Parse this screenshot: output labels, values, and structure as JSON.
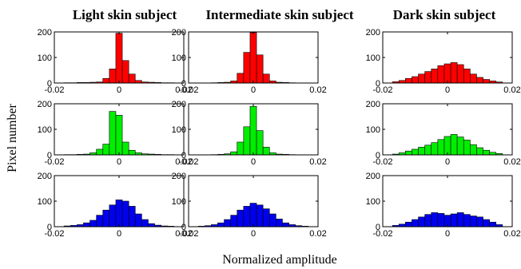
{
  "figure": {
    "column_titles": [
      "Light skin subject",
      "Intermediate skin subject",
      "Dark skin subject"
    ],
    "xlabel": "Normalized amplitude",
    "ylabel": "Pixel number"
  },
  "chart_data": [
    {
      "type": "bar",
      "subject": "Light skin subject",
      "channel": "red",
      "color": "#ff0000",
      "xlim": [
        -0.02,
        0.02
      ],
      "ylim": [
        0,
        200
      ],
      "xticks": [
        "-0.02",
        "0",
        "0.02"
      ],
      "yticks": [
        "0",
        "100",
        "200"
      ],
      "bin_width": 0.002,
      "bin_centers": [
        -0.016,
        -0.014,
        -0.012,
        -0.01,
        -0.008,
        -0.006,
        -0.004,
        -0.002,
        0.0,
        0.002,
        0.004,
        0.006,
        0.008,
        0.01,
        0.012,
        0.014,
        0.016
      ],
      "values": [
        1,
        1,
        2,
        2,
        3,
        4,
        18,
        55,
        195,
        88,
        35,
        10,
        4,
        3,
        2,
        1,
        1
      ]
    },
    {
      "type": "bar",
      "subject": "Intermediate skin subject",
      "channel": "red",
      "color": "#ff0000",
      "xlim": [
        -0.02,
        0.02
      ],
      "ylim": [
        0,
        200
      ],
      "xticks": [
        "-0.02",
        "0",
        "0.02"
      ],
      "yticks": [
        "0",
        "100",
        "200"
      ],
      "bin_width": 0.002,
      "bin_centers": [
        -0.012,
        -0.01,
        -0.008,
        -0.006,
        -0.004,
        -0.002,
        0.0,
        0.002,
        0.004,
        0.006,
        0.008,
        0.01,
        0.012
      ],
      "values": [
        1,
        2,
        3,
        8,
        38,
        120,
        198,
        110,
        35,
        8,
        3,
        2,
        1
      ]
    },
    {
      "type": "bar",
      "subject": "Dark skin subject",
      "channel": "red",
      "color": "#ff0000",
      "xlim": [
        -0.02,
        0.02
      ],
      "ylim": [
        0,
        200
      ],
      "xticks": [
        "-0.02",
        "0",
        "0.02"
      ],
      "yticks": [
        "0",
        "100",
        "200"
      ],
      "bin_width": 0.002,
      "bin_centers": [
        -0.016,
        -0.014,
        -0.012,
        -0.01,
        -0.008,
        -0.006,
        -0.004,
        -0.002,
        0.0,
        0.002,
        0.004,
        0.006,
        0.008,
        0.01,
        0.012,
        0.014,
        0.016
      ],
      "values": [
        5,
        10,
        18,
        25,
        35,
        45,
        55,
        68,
        75,
        80,
        72,
        55,
        35,
        22,
        14,
        8,
        4
      ]
    },
    {
      "type": "bar",
      "subject": "Light skin subject",
      "channel": "green",
      "color": "#00ee00",
      "xlim": [
        -0.02,
        0.02
      ],
      "ylim": [
        0,
        200
      ],
      "xticks": [
        "-0.02",
        "0",
        "0.02"
      ],
      "yticks": [
        "0",
        "100",
        "200"
      ],
      "bin_width": 0.002,
      "bin_centers": [
        -0.016,
        -0.014,
        -0.012,
        -0.01,
        -0.008,
        -0.006,
        -0.004,
        -0.002,
        0.0,
        0.002,
        0.004,
        0.006,
        0.008,
        0.01,
        0.012,
        0.014,
        0.016
      ],
      "values": [
        1,
        1,
        2,
        3,
        8,
        22,
        42,
        170,
        155,
        50,
        18,
        8,
        4,
        3,
        2,
        1,
        1
      ]
    },
    {
      "type": "bar",
      "subject": "Intermediate skin subject",
      "channel": "green",
      "color": "#00ee00",
      "xlim": [
        -0.02,
        0.02
      ],
      "ylim": [
        0,
        200
      ],
      "xticks": [
        "-0.02",
        "0",
        "0.02"
      ],
      "yticks": [
        "0",
        "100",
        "200"
      ],
      "bin_width": 0.002,
      "bin_centers": [
        -0.012,
        -0.01,
        -0.008,
        -0.006,
        -0.004,
        -0.002,
        0.0,
        0.002,
        0.004,
        0.006,
        0.008,
        0.01,
        0.012
      ],
      "values": [
        1,
        2,
        4,
        12,
        50,
        110,
        190,
        95,
        30,
        8,
        3,
        2,
        1
      ]
    },
    {
      "type": "bar",
      "subject": "Dark skin subject",
      "channel": "green",
      "color": "#00ee00",
      "xlim": [
        -0.02,
        0.02
      ],
      "ylim": [
        0,
        200
      ],
      "xticks": [
        "-0.02",
        "0",
        "0.02"
      ],
      "yticks": [
        "0",
        "100",
        "200"
      ],
      "bin_width": 0.002,
      "bin_centers": [
        -0.016,
        -0.014,
        -0.012,
        -0.01,
        -0.008,
        -0.006,
        -0.004,
        -0.002,
        0.0,
        0.002,
        0.004,
        0.006,
        0.008,
        0.01,
        0.012,
        0.014,
        0.016
      ],
      "values": [
        3,
        8,
        15,
        22,
        30,
        38,
        48,
        60,
        72,
        80,
        70,
        58,
        40,
        28,
        18,
        10,
        5
      ]
    },
    {
      "type": "bar",
      "subject": "Light skin subject",
      "channel": "blue",
      "color": "#0000ee",
      "xlim": [
        -0.02,
        0.02
      ],
      "ylim": [
        0,
        200
      ],
      "xticks": [
        "-0.02",
        "0",
        "0.02"
      ],
      "yticks": [
        "0",
        "100",
        "200"
      ],
      "bin_width": 0.002,
      "bin_centers": [
        -0.016,
        -0.014,
        -0.012,
        -0.01,
        -0.008,
        -0.006,
        -0.004,
        -0.002,
        0.0,
        0.002,
        0.004,
        0.006,
        0.008,
        0.01,
        0.012,
        0.014,
        0.016
      ],
      "values": [
        3,
        5,
        8,
        15,
        25,
        45,
        65,
        85,
        105,
        100,
        80,
        50,
        28,
        12,
        6,
        3,
        2
      ]
    },
    {
      "type": "bar",
      "subject": "Intermediate skin subject",
      "channel": "blue",
      "color": "#0000ee",
      "xlim": [
        -0.02,
        0.02
      ],
      "ylim": [
        0,
        200
      ],
      "xticks": [
        "-0.02",
        "0",
        "0.02"
      ],
      "yticks": [
        "0",
        "100",
        "200"
      ],
      "bin_width": 0.002,
      "bin_centers": [
        -0.016,
        -0.014,
        -0.012,
        -0.01,
        -0.008,
        -0.006,
        -0.004,
        -0.002,
        0.0,
        0.002,
        0.004,
        0.006,
        0.008,
        0.01,
        0.012,
        0.014,
        0.016
      ],
      "values": [
        2,
        4,
        8,
        15,
        28,
        45,
        65,
        80,
        92,
        85,
        70,
        50,
        30,
        15,
        8,
        4,
        2
      ]
    },
    {
      "type": "bar",
      "subject": "Dark skin subject",
      "channel": "blue",
      "color": "#0000ee",
      "xlim": [
        -0.02,
        0.02
      ],
      "ylim": [
        0,
        200
      ],
      "xticks": [
        "-0.02",
        "0",
        "0.02"
      ],
      "yticks": [
        "0",
        "100",
        "200"
      ],
      "bin_width": 0.002,
      "bin_centers": [
        -0.016,
        -0.014,
        -0.012,
        -0.01,
        -0.008,
        -0.006,
        -0.004,
        -0.002,
        0.0,
        0.002,
        0.004,
        0.006,
        0.008,
        0.01,
        0.012,
        0.014,
        0.016
      ],
      "values": [
        5,
        10,
        18,
        28,
        38,
        48,
        55,
        52,
        45,
        50,
        55,
        48,
        42,
        38,
        28,
        18,
        8
      ]
    }
  ]
}
